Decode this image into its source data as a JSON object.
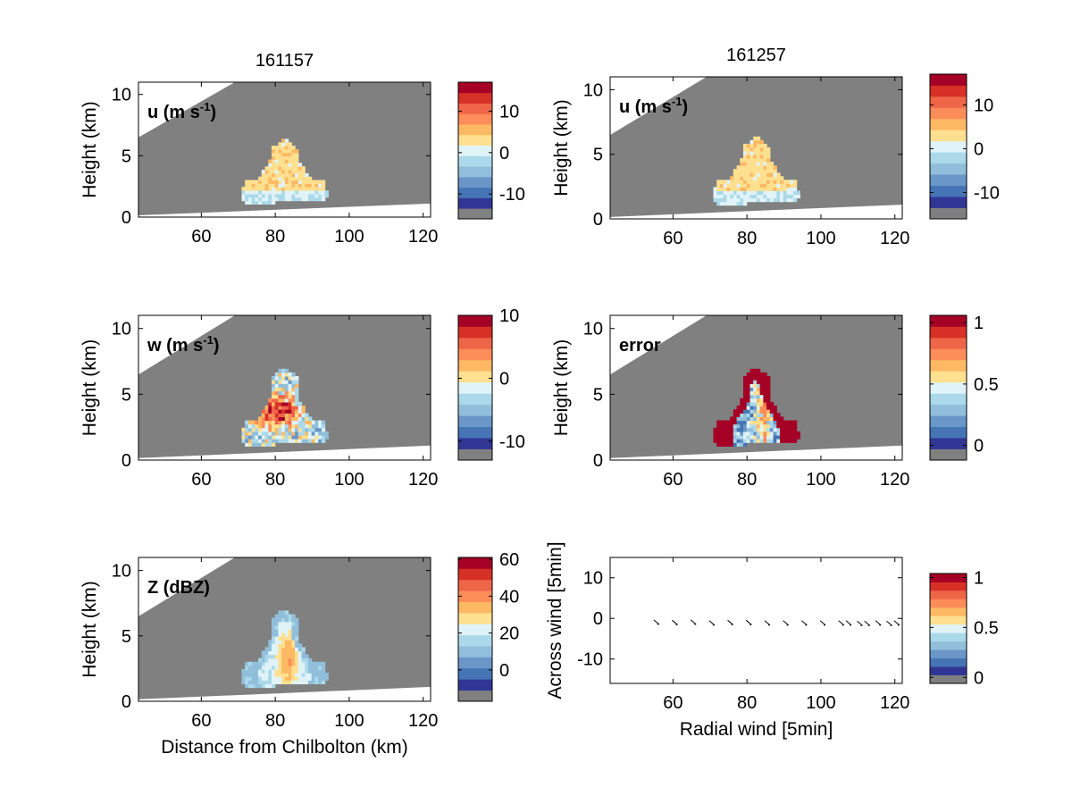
{
  "chart_data": [
    {
      "type": "heatmap",
      "title": "161157",
      "panel_label": "u (m s",
      "panel_label_sup": "-1",
      "panel_label_close": ")",
      "xlabel": "",
      "ylabel": "Height (km)",
      "xlim": [
        43,
        122
      ],
      "ylim": [
        0,
        11
      ],
      "xticks": [
        60,
        80,
        100,
        120
      ],
      "yticks": [
        0,
        5,
        10
      ],
      "colorbar": {
        "ticks": [
          10,
          0,
          -10
        ],
        "range": [
          -16,
          17
        ],
        "levels": 12
      },
      "field": "u"
    },
    {
      "type": "heatmap",
      "title": "161257",
      "panel_label": "u (m s",
      "panel_label_sup": "-1",
      "panel_label_close": ")",
      "xlabel": "",
      "ylabel": "Height (km)",
      "xlim": [
        43,
        122
      ],
      "ylim": [
        0,
        11
      ],
      "xticks": [
        60,
        80,
        100,
        120
      ],
      "yticks": [
        0,
        5,
        10
      ],
      "colorbar": {
        "ticks": [
          10,
          0,
          -10
        ],
        "range": [
          -16,
          17
        ],
        "levels": 12
      },
      "field": "u"
    },
    {
      "type": "heatmap",
      "title": "",
      "panel_label": "w (m s",
      "panel_label_sup": "-1",
      "panel_label_close": ")",
      "xlabel": "",
      "ylabel": "Height (km)",
      "xlim": [
        43,
        122
      ],
      "ylim": [
        0,
        11
      ],
      "xticks": [
        60,
        80,
        100,
        120
      ],
      "yticks": [
        0,
        5,
        10
      ],
      "colorbar": {
        "ticks": [
          10,
          0,
          -10
        ],
        "range": [
          -13,
          10
        ],
        "levels": 12
      },
      "field": "w"
    },
    {
      "type": "heatmap",
      "title": "",
      "panel_label": "error",
      "xlabel": "",
      "ylabel": "Height (km)",
      "xlim": [
        43,
        122
      ],
      "ylim": [
        0,
        11
      ],
      "xticks": [
        60,
        80,
        100,
        120
      ],
      "yticks": [
        0,
        5,
        10
      ],
      "colorbar": {
        "ticks": [
          1,
          0.5,
          0
        ],
        "range": [
          -0.12,
          1.06
        ],
        "levels": 12
      },
      "field": "error"
    },
    {
      "type": "heatmap",
      "title": "",
      "panel_label": "Z (dBZ)",
      "xlabel": "Distance from Chilbolton (km)",
      "ylabel": "Height (km)",
      "xlim": [
        43,
        122
      ],
      "ylim": [
        0,
        11
      ],
      "xticks": [
        60,
        80,
        100,
        120
      ],
      "yticks": [
        0,
        5,
        10
      ],
      "colorbar": {
        "ticks": [
          60,
          40,
          20,
          0
        ],
        "range": [
          -17,
          61
        ],
        "levels": 12
      },
      "field": "Z"
    },
    {
      "type": "scatter",
      "title": "",
      "xlabel": "Radial wind [5min]",
      "ylabel": "Across wind [5min]",
      "xlim": [
        43,
        122
      ],
      "ylim": [
        -16,
        15
      ],
      "xticks": [
        60,
        80,
        100,
        120
      ],
      "yticks": [
        10,
        0,
        -10
      ],
      "colorbar": {
        "ticks": [
          1,
          0.5,
          0
        ],
        "range": [
          -0.06,
          1.04
        ],
        "levels": 12
      },
      "vectors_x": [
        55.5,
        60.5,
        65.5,
        70.5,
        75.5,
        80.5,
        85.5,
        90.5,
        95.5,
        100.5,
        105.5,
        107.5,
        110.5,
        112.5,
        115.5,
        118.5,
        120.5
      ],
      "vectors_y": [
        -0.8,
        -0.9,
        -0.8,
        -1.0,
        -0.9,
        -0.9,
        -1.0,
        -1.0,
        -1.0,
        -1.0,
        -1.0,
        -1.0,
        -1.1,
        -1.1,
        -1.0,
        -1.1,
        -1.0
      ]
    }
  ],
  "colors": {
    "background_gray": "#808080",
    "colormap": [
      "#313695",
      "#4575b4",
      "#6a96c8",
      "#91bfdb",
      "#abd9e9",
      "#e0f3f8",
      "#fee090",
      "#fdb863",
      "#fc8d59",
      "#ef6548",
      "#d73027",
      "#a50026"
    ],
    "nan_color": "#808080"
  }
}
